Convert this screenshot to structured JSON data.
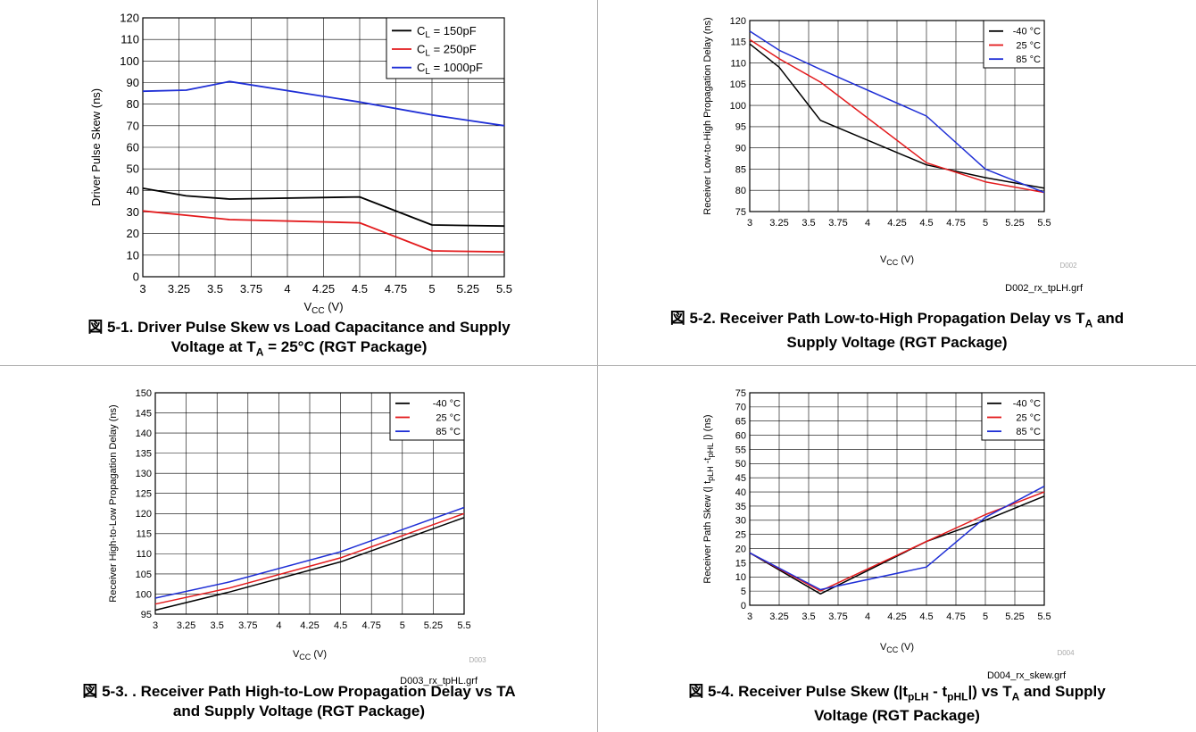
{
  "charts": [
    {
      "id": "c1",
      "caption_prefix": "図 5-1. ",
      "caption_lines": [
        [
          {
            "t": "Driver Pulse Skew vs Load Capacitance and Supply"
          }
        ],
        [
          {
            "t": "Voltage at T"
          },
          {
            "sub": "A"
          },
          {
            "t": " = 25°C (RGT Package)"
          }
        ]
      ],
      "tag": "",
      "filename": ""
    },
    {
      "id": "c2",
      "caption_prefix": "図 5-2. ",
      "caption_lines": [
        [
          {
            "t": "Receiver Path Low-to-High Propagation Delay vs T"
          },
          {
            "sub": "A"
          },
          {
            "t": " and"
          }
        ],
        [
          {
            "t": "Supply Voltage (RGT Package)"
          }
        ]
      ],
      "tag": "D002",
      "filename": "D002_rx_tpLH.grf"
    },
    {
      "id": "c3",
      "caption_prefix": "図 5-3. ",
      "caption_lines": [
        [
          {
            "t": ". Receiver Path High-to-Low Propagation Delay vs TA"
          }
        ],
        [
          {
            "t": "and Supply Voltage (RGT Package)"
          }
        ]
      ],
      "tag": "D003",
      "filename": "D003_rx_tpHL.grf"
    },
    {
      "id": "c4",
      "caption_prefix": "図 5-4. ",
      "caption_lines": [
        [
          {
            "t": "Receiver Pulse Skew (|t"
          },
          {
            "sub": "pLH"
          },
          {
            "t": " - t"
          },
          {
            "sub": "pHL"
          },
          {
            "t": "|) vs T"
          },
          {
            "sub": "A"
          },
          {
            "t": " and Supply"
          }
        ],
        [
          {
            "t": "Voltage (RGT Package)"
          }
        ]
      ],
      "tag": "D004",
      "filename": "D004_rx_skew.grf"
    }
  ],
  "chart_data": [
    {
      "type": "line",
      "title": "",
      "xlabel": "V_CC (V)",
      "ylabel": "Driver Pulse Skew (ns)",
      "xlim": [
        3,
        5.5
      ],
      "ylim": [
        0,
        120
      ],
      "x_ticks": [
        3,
        3.25,
        3.5,
        3.75,
        4,
        4.25,
        4.5,
        4.75,
        5,
        5.25,
        5.5
      ],
      "y_ticks": [
        0,
        10,
        20,
        30,
        40,
        50,
        60,
        70,
        80,
        90,
        100,
        110,
        120
      ],
      "x_tick_labels": [
        "3",
        "3.25",
        "3.5",
        "3.75",
        "4",
        "4.25",
        "4.5",
        "4.75",
        "5",
        "5.25",
        "5.5"
      ],
      "y_tick_labels": [
        "0",
        "10",
        "20",
        "30",
        "40",
        "50",
        "60",
        "70",
        "80",
        "90",
        "100",
        "110",
        "120"
      ],
      "grid": true,
      "legend": "top-right",
      "series": [
        {
          "name": "C_L = 150pF",
          "color": "#000000",
          "x": [
            3,
            3.3,
            3.6,
            4.5,
            5,
            5.5
          ],
          "y": [
            41,
            37.5,
            36,
            37,
            24,
            23.5
          ]
        },
        {
          "name": "C_L = 250pF",
          "color": "#e31a1c",
          "x": [
            3,
            3.3,
            3.6,
            4.5,
            5,
            5.5
          ],
          "y": [
            30.5,
            28.5,
            26.5,
            25,
            12,
            11.5
          ]
        },
        {
          "name": "C_L = 1000pF",
          "color": "#1f2fd6",
          "x": [
            3,
            3.3,
            3.6,
            4.5,
            5,
            5.5
          ],
          "y": [
            86,
            86.5,
            90.5,
            81,
            75,
            70
          ]
        }
      ]
    },
    {
      "type": "line",
      "title": "",
      "xlabel": "V_CC (V)",
      "ylabel": "Receiver Low-to-High Propagation Delay (ns)",
      "xlim": [
        3,
        5.5
      ],
      "ylim": [
        75,
        120
      ],
      "x_ticks": [
        3,
        3.25,
        3.5,
        3.75,
        4,
        4.25,
        4.5,
        4.75,
        5,
        5.25,
        5.5
      ],
      "y_ticks": [
        75,
        80,
        85,
        90,
        95,
        100,
        105,
        110,
        115,
        120
      ],
      "x_tick_labels": [
        "3",
        "3.25",
        "3.5",
        "3.75",
        "4",
        "4.25",
        "4.5",
        "4.75",
        "5",
        "5.25",
        "5.5"
      ],
      "y_tick_labels": [
        "75",
        "80",
        "85",
        "90",
        "95",
        "100",
        "105",
        "110",
        "115",
        "120"
      ],
      "grid": true,
      "legend": "top-right",
      "series": [
        {
          "name": "-40 °C",
          "color": "#000000",
          "x": [
            3,
            3.25,
            3.6,
            4.5,
            5,
            5.5
          ],
          "y": [
            114.5,
            109,
            96.5,
            86,
            83,
            80.5
          ]
        },
        {
          "name": "25 °C",
          "color": "#e31a1c",
          "x": [
            3,
            3.25,
            3.6,
            4.5,
            5,
            5.5
          ],
          "y": [
            115.5,
            111,
            105.5,
            86.5,
            82,
            79.5
          ]
        },
        {
          "name": "85 °C",
          "color": "#1f2fd6",
          "x": [
            3,
            3.25,
            3.6,
            4.5,
            5,
            5.5
          ],
          "y": [
            117.5,
            113,
            108.5,
            97.5,
            85,
            79.5
          ]
        }
      ]
    },
    {
      "type": "line",
      "title": "",
      "xlabel": "V_CC (V)",
      "ylabel": "Receiver High-to-Low Propagation Delay (ns)",
      "xlim": [
        3,
        5.5
      ],
      "ylim": [
        95,
        150
      ],
      "x_ticks": [
        3,
        3.25,
        3.5,
        3.75,
        4,
        4.25,
        4.5,
        4.75,
        5,
        5.25,
        5.5
      ],
      "y_ticks": [
        95,
        100,
        105,
        110,
        115,
        120,
        125,
        130,
        135,
        140,
        145,
        150
      ],
      "x_tick_labels": [
        "3",
        "3.25",
        "3.5",
        "3.75",
        "4",
        "4.25",
        "4.5",
        "4.75",
        "5",
        "5.25",
        "5.5"
      ],
      "y_tick_labels": [
        "95",
        "100",
        "105",
        "110",
        "115",
        "120",
        "125",
        "130",
        "135",
        "140",
        "145",
        "150"
      ],
      "grid": true,
      "legend": "top-right",
      "series": [
        {
          "name": "-40 °C",
          "color": "#000000",
          "x": [
            3,
            3.6,
            4.5,
            5,
            5.5
          ],
          "y": [
            96,
            100.5,
            108,
            113.5,
            119
          ]
        },
        {
          "name": "25 °C",
          "color": "#e31a1c",
          "x": [
            3,
            3.6,
            4.5,
            5,
            5.5
          ],
          "y": [
            97.5,
            101.5,
            109,
            114.5,
            120
          ]
        },
        {
          "name": "85 °C",
          "color": "#1f2fd6",
          "x": [
            3,
            3.6,
            4.5,
            5,
            5.5
          ],
          "y": [
            99,
            103,
            110.5,
            116,
            121.5
          ]
        }
      ]
    },
    {
      "type": "line",
      "title": "",
      "xlabel": "V_CC (V)",
      "ylabel": "Receiver Path Skew (| t_pLH -t_pHL |) (ns)",
      "xlim": [
        3,
        5.5
      ],
      "ylim": [
        0,
        75
      ],
      "x_ticks": [
        3,
        3.25,
        3.5,
        3.75,
        4,
        4.25,
        4.5,
        4.75,
        5,
        5.25,
        5.5
      ],
      "y_ticks": [
        0,
        5,
        10,
        15,
        20,
        25,
        30,
        35,
        40,
        45,
        50,
        55,
        60,
        65,
        70,
        75
      ],
      "x_tick_labels": [
        "3",
        "3.25",
        "3.5",
        "3.75",
        "4",
        "4.25",
        "4.5",
        "4.75",
        "5",
        "5.25",
        "5.5"
      ],
      "y_tick_labels": [
        "0",
        "5",
        "10",
        "15",
        "20",
        "25",
        "30",
        "35",
        "40",
        "45",
        "50",
        "55",
        "60",
        "65",
        "70",
        "75"
      ],
      "grid": true,
      "legend": "top-right",
      "series": [
        {
          "name": "-40 °C",
          "color": "#000000",
          "x": [
            3,
            3.6,
            4.5,
            5,
            5.5
          ],
          "y": [
            18.5,
            4,
            22.5,
            30,
            38.5
          ]
        },
        {
          "name": "25 °C",
          "color": "#e31a1c",
          "x": [
            3,
            3.6,
            4.5,
            5,
            5.5
          ],
          "y": [
            18.5,
            5,
            22.5,
            32,
            40
          ]
        },
        {
          "name": "85 °C",
          "color": "#1f2fd6",
          "x": [
            3,
            3.6,
            4.5,
            5,
            5.5
          ],
          "y": [
            18.5,
            5.5,
            13.5,
            31,
            42
          ]
        }
      ]
    }
  ]
}
